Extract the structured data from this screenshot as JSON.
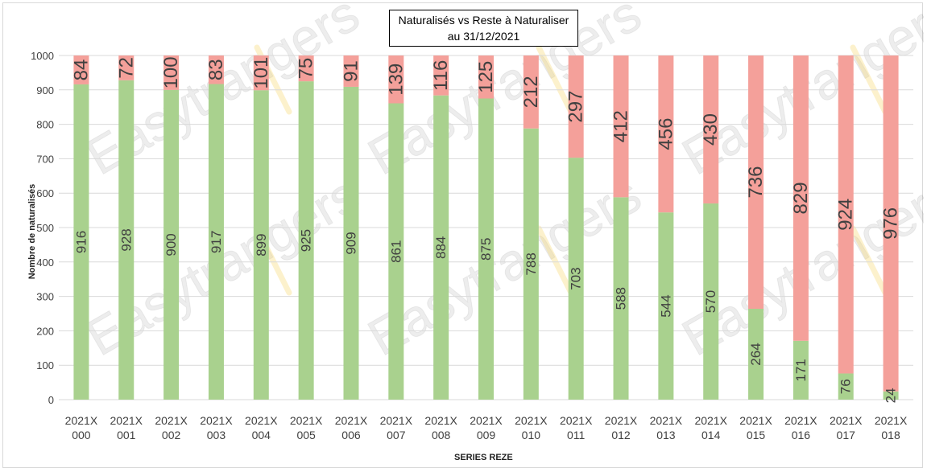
{
  "chart_data": {
    "type": "bar",
    "stacked": true,
    "orientation": "vertical",
    "title": "Naturalisés vs Reste à Naturaliser",
    "subtitle": "au 31/12/2021",
    "xlabel": "SERIES REZE",
    "ylabel": "Nombre de naturalisés",
    "ylim": [
      0,
      1000
    ],
    "yticks": [
      0,
      100,
      200,
      300,
      400,
      500,
      600,
      700,
      800,
      900,
      1000
    ],
    "grid": true,
    "legend": "none",
    "categories": [
      [
        "2021X",
        "000"
      ],
      [
        "2021X",
        "001"
      ],
      [
        "2021X",
        "002"
      ],
      [
        "2021X",
        "003"
      ],
      [
        "2021X",
        "004"
      ],
      [
        "2021X",
        "005"
      ],
      [
        "2021X",
        "006"
      ],
      [
        "2021X",
        "007"
      ],
      [
        "2021X",
        "008"
      ],
      [
        "2021X",
        "009"
      ],
      [
        "2021X",
        "010"
      ],
      [
        "2021X",
        "011"
      ],
      [
        "2021X",
        "012"
      ],
      [
        "2021X",
        "013"
      ],
      [
        "2021X",
        "014"
      ],
      [
        "2021X",
        "015"
      ],
      [
        "2021X",
        "016"
      ],
      [
        "2021X",
        "017"
      ],
      [
        "2021X",
        "018"
      ]
    ],
    "series": [
      {
        "color": "#a9d18e",
        "values": [
          916,
          928,
          900,
          917,
          899,
          925,
          909,
          861,
          884,
          875,
          788,
          703,
          588,
          544,
          570,
          264,
          171,
          76,
          24
        ]
      },
      {
        "color": "#f4a09a",
        "values": [
          84,
          72,
          100,
          83,
          101,
          75,
          91,
          139,
          116,
          125,
          212,
          297,
          412,
          456,
          430,
          736,
          829,
          924,
          976
        ]
      }
    ]
  },
  "watermark": "Easytrangers"
}
